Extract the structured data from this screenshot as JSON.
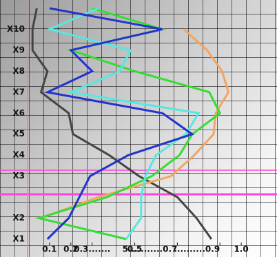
{
  "chart_data": {
    "type": "line",
    "orientation": "horizontal",
    "categories": [
      "X1",
      "X2",
      null,
      "X3",
      "X4",
      "X5",
      "X6",
      "X7",
      "X8",
      "X9",
      "X10",
      null
    ],
    "xlim": [
      0,
      1.1
    ],
    "xticks": [
      {
        "value": 0.1,
        "label": "0.1"
      },
      {
        "value": 0.2,
        "label": "0.2"
      },
      {
        "value": 0.3,
        "label": "0.3......."
      },
      {
        "value": 0.5,
        "label": "0.5"
      },
      {
        "value": 0.7,
        "label": "5...........0.7"
      },
      {
        "value": 0.9,
        "label": "..........0.9"
      },
      {
        "value": 1.0,
        "label": "1.0"
      }
    ],
    "series": [
      {
        "color": "#444444",
        "values": [
          0.86,
          0.79,
          0.7,
          0.52,
          0.38,
          0.21,
          0.19,
          0.06,
          0.09,
          0.02,
          0.02,
          0.04
        ]
      },
      {
        "color": "#f4a460",
        "values": [
          null,
          0.06,
          0.33,
          0.67,
          0.78,
          0.87,
          0.88,
          0.94,
          0.91,
          0.84,
          0.73,
          null
        ]
      },
      {
        "color": "#33dd33",
        "values": [
          0.46,
          0.05,
          0.37,
          0.58,
          0.71,
          0.77,
          0.9,
          0.85,
          0.5,
          0.2,
          0.63,
          0.3
        ]
      },
      {
        "color": "#55e8e0",
        "values": [
          0.46,
          0.53,
          0.53,
          0.55,
          0.6,
          0.74,
          0.8,
          0.2,
          0.43,
          0.48,
          0.1,
          0.33
        ]
      },
      {
        "color": "#2233cc",
        "values": [
          0.09,
          0.19,
          0.24,
          0.29,
          0.47,
          0.77,
          0.63,
          0.09,
          0.3,
          0.2,
          0.63,
          0.1
        ]
      }
    ]
  }
}
